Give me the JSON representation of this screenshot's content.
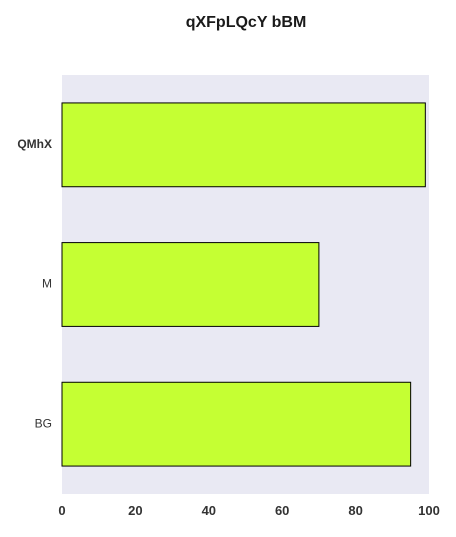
{
  "chart_data": {
    "type": "bar",
    "orientation": "horizontal",
    "title": "qXFpLQcY bBM",
    "xlabel": "",
    "ylabel": "",
    "categories": [
      "QMhX",
      "M",
      "BG"
    ],
    "values": [
      99,
      70,
      95
    ],
    "xlim": [
      0,
      100
    ],
    "xticks": [
      0,
      20,
      40,
      60,
      80,
      100
    ],
    "grid": false,
    "legend": "none",
    "colors": {
      "plot_background": "#e9e9f3",
      "bar_fill": "#c5ff33",
      "bar_stroke": "#000000"
    }
  }
}
